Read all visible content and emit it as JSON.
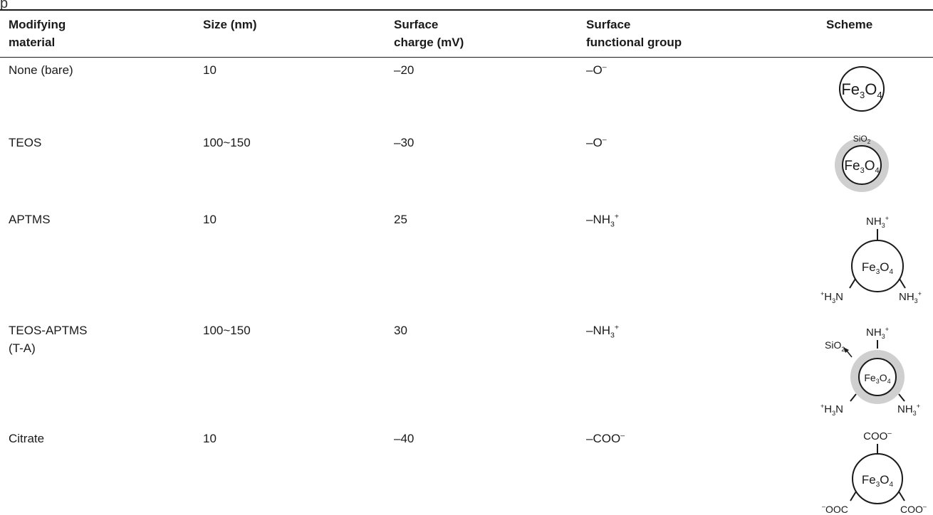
{
  "caption_fragment": "p",
  "headers": [
    {
      "line1": "Modifying",
      "line2": "material"
    },
    {
      "line1": "Size (nm)",
      "line2": ""
    },
    {
      "line1": "Surface",
      "line2": "charge (mV)"
    },
    {
      "line1": "Surface",
      "line2": "functional group"
    },
    {
      "line1": "Scheme",
      "line2": ""
    }
  ],
  "rows": [
    {
      "material": "None (bare)",
      "material2": "",
      "size": "10",
      "charge": "–20",
      "group_base": "–O",
      "group_sub": "",
      "group_sup": "–"
    },
    {
      "material": "TEOS",
      "material2": "",
      "size": "100~150",
      "charge": "–30",
      "group_base": "–O",
      "group_sub": "",
      "group_sup": "–"
    },
    {
      "material": "APTMS",
      "material2": "",
      "size": "10",
      "charge": "25",
      "group_base": "–NH",
      "group_sub": "3",
      "group_sup": "+"
    },
    {
      "material": "TEOS-APTMS",
      "material2": "(T-A)",
      "size": "100~150",
      "charge": "30",
      "group_base": "–NH",
      "group_sub": "3",
      "group_sup": "+"
    },
    {
      "material": "Citrate",
      "material2": "",
      "size": "10",
      "charge": "–40",
      "group_base": "–COO",
      "group_sub": "",
      "group_sup": "–"
    }
  ],
  "scheme_labels": {
    "core": "Fe3O4",
    "shell": "SiO2",
    "amine": "NH3+",
    "amine_left": "+H3N",
    "carboxyl": "COO–",
    "carboxyl_left": "–OOC"
  }
}
